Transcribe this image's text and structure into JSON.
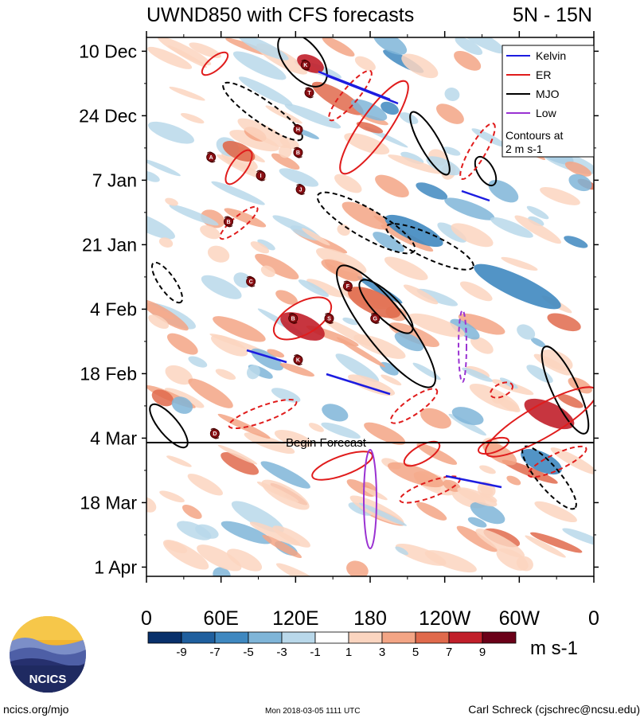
{
  "header": {
    "title": "UWND850 with CFS forecasts",
    "region": "5N - 15N"
  },
  "chart_data": {
    "type": "heatmap",
    "title": "UWND850 with CFS forecasts",
    "subtitle": "5N - 15N",
    "x_ticks": [
      "0",
      "60E",
      "120E",
      "180",
      "120W",
      "60W",
      "0"
    ],
    "x_values": [
      0,
      60,
      120,
      180,
      240,
      300,
      360
    ],
    "xlim": [
      0,
      360
    ],
    "y_ticks": [
      "10 Dec",
      "24 Dec",
      "7 Jan",
      "21 Jan",
      "4 Feb",
      "18 Feb",
      "4 Mar",
      "18 Mar",
      "1 Apr"
    ],
    "y_dates": [
      "2017-12-10",
      "2017-12-24",
      "2018-01-07",
      "2018-01-21",
      "2018-02-04",
      "2018-02-18",
      "2018-03-04",
      "2018-03-18",
      "2018-04-01"
    ],
    "ylim": [
      "2017-12-07",
      "2018-04-03"
    ],
    "forecast_start": "2018-03-04",
    "forecast_label": "Begin Forecast",
    "colorbar": {
      "units": "m s-1",
      "levels": [
        -9,
        -7,
        -5,
        -3,
        -1,
        1,
        3,
        5,
        7,
        9
      ],
      "colors": [
        "#08306b",
        "#1f5f9e",
        "#3f88c0",
        "#7fb5d8",
        "#b9d8ea",
        "#ffffff",
        "#fbd5c0",
        "#f3a585",
        "#e06a4c",
        "#c11f2a",
        "#6b0018"
      ]
    },
    "legend": {
      "position": "top-right",
      "entries": [
        {
          "name": "Kelvin",
          "color": "#1c1ce0"
        },
        {
          "name": "ER",
          "color": "#e01c1c"
        },
        {
          "name": "MJO",
          "color": "#000000"
        },
        {
          "name": "Low",
          "color": "#9a32d2"
        }
      ],
      "note_lines": [
        "Contours at",
        "2 m s-1"
      ]
    },
    "tropical_cyclone_tracks": [
      {
        "label": "K",
        "lon": 128,
        "date": "2017-12-13"
      },
      {
        "label": "T",
        "lon": 131,
        "date": "2017-12-19"
      },
      {
        "label": "H",
        "lon": 122,
        "date": "2017-12-27"
      },
      {
        "label": "B",
        "lon": 122,
        "date": "2018-01-01"
      },
      {
        "label": "A",
        "lon": 52,
        "date": "2018-01-02"
      },
      {
        "label": "I",
        "lon": 92,
        "date": "2018-01-06"
      },
      {
        "label": "J",
        "lon": 124,
        "date": "2018-01-09"
      },
      {
        "label": "B",
        "lon": 66,
        "date": "2018-01-16"
      },
      {
        "label": "C",
        "lon": 84,
        "date": "2018-01-29"
      },
      {
        "label": "F",
        "lon": 162,
        "date": "2018-01-30"
      },
      {
        "label": "B",
        "lon": 118,
        "date": "2018-02-06"
      },
      {
        "label": "S",
        "lon": 147,
        "date": "2018-02-06"
      },
      {
        "label": "G",
        "lon": 184,
        "date": "2018-02-06"
      },
      {
        "label": "K",
        "lon": 122,
        "date": "2018-02-15"
      },
      {
        "label": "D",
        "lon": 55,
        "date": "2018-03-03"
      }
    ]
  },
  "footer": {
    "logo_text": "NCICS",
    "left": "ncics.org/mjo",
    "center": "Mon 2018-03-05 1111 UTC",
    "right": "Carl Schreck (cjschrec@ncsu.edu)"
  }
}
